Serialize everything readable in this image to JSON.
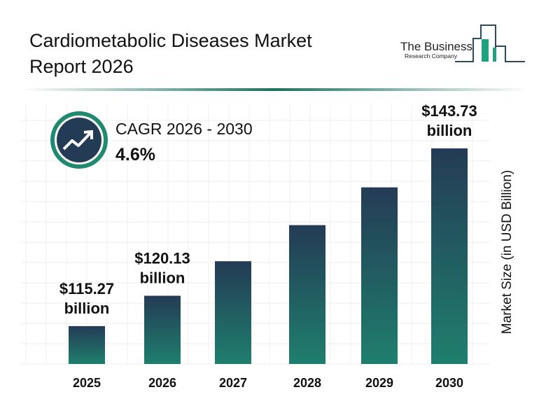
{
  "title": "Cardiometabolic Diseases Market Report 2026",
  "logo": {
    "line1": "The Business",
    "line2": "Research Company"
  },
  "cagr": {
    "label": "CAGR 2026 - 2030",
    "value": "4.6%",
    "icon": "trending-up-icon"
  },
  "colors": {
    "bar_top": "#243b55",
    "bar_bottom": "#1f7f6d",
    "accent": "#1f8a70",
    "icon_bg": "#243b55"
  },
  "chart_data": {
    "type": "bar",
    "categories": [
      "2025",
      "2026",
      "2027",
      "2028",
      "2029",
      "2030"
    ],
    "values": [
      115.27,
      120.13,
      125.66,
      131.44,
      137.49,
      143.73
    ],
    "data_labels": [
      {
        "index": 0,
        "line1": "$115.27",
        "line2": "billion"
      },
      {
        "index": 1,
        "line1": "$120.13",
        "line2": "billion"
      },
      {
        "index": 5,
        "line1": "$143.73",
        "line2": "billion"
      }
    ],
    "ylabel": "Market Size (in USD Billion)",
    "grid": true
  }
}
